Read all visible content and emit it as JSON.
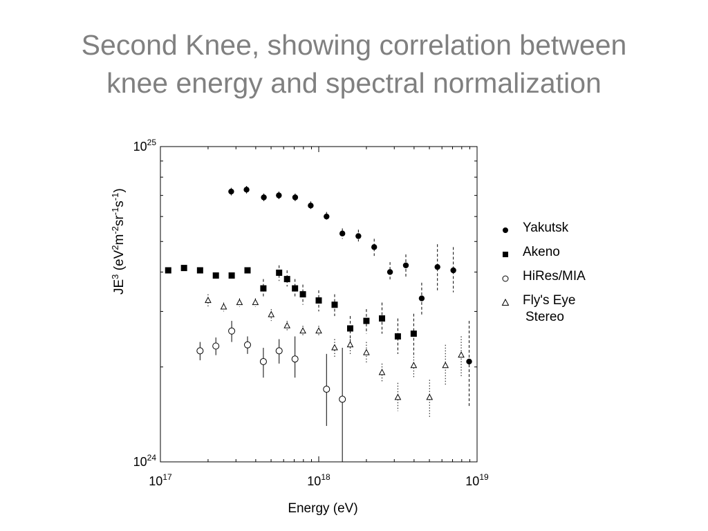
{
  "slide": {
    "title_line1": "Second Knee, showing correlation between",
    "title_line2": "knee energy and spectral normalization"
  },
  "chart_data": {
    "type": "scatter",
    "xlabel": "Energy (eV)",
    "ylabel_main": "JE",
    "ylabel_parts": [
      "JE",
      "3",
      " (eV",
      "2",
      "m",
      "-2",
      "sr",
      "-1",
      "s",
      "-1",
      ")"
    ],
    "x_scale": "log",
    "y_scale": "log",
    "xlim": [
      1e+17,
      1e+19
    ],
    "ylim": [
      1e+24,
      1e+25
    ],
    "x_ticks": [
      {
        "value": 1e+17,
        "base": "10",
        "exp": "17"
      },
      {
        "value": 1e+18,
        "base": "10",
        "exp": "18"
      },
      {
        "value": 1e+19,
        "base": "10",
        "exp": "19"
      }
    ],
    "y_ticks": [
      {
        "value": 1e+24,
        "base": "10",
        "exp": "24"
      },
      {
        "value": 1e+25,
        "base": "10",
        "exp": "25"
      }
    ],
    "legend_placement": "right",
    "series": [
      {
        "name": "Yakutsk",
        "marker": "circle-filled",
        "error_style": "dashed",
        "points": [
          {
            "x": 2.8e+17,
            "y": 7.2e+24,
            "lo": 7e+24,
            "hi": 7.4e+24
          },
          {
            "x": 3.5e+17,
            "y": 7.3e+24,
            "lo": 7.1e+24,
            "hi": 7.5e+24
          },
          {
            "x": 4.5e+17,
            "y": 6.9e+24,
            "lo": 6.7e+24,
            "hi": 7.1e+24
          },
          {
            "x": 5.6e+17,
            "y": 7e+24,
            "lo": 6.8e+24,
            "hi": 7.2e+24
          },
          {
            "x": 7.1e+17,
            "y": 6.9e+24,
            "lo": 6.7e+24,
            "hi": 7.1e+24
          },
          {
            "x": 8.9e+17,
            "y": 6.5e+24,
            "lo": 6.3e+24,
            "hi": 6.7e+24
          },
          {
            "x": 1.12e+18,
            "y": 6e+24,
            "lo": 5.8e+24,
            "hi": 6.2e+24
          },
          {
            "x": 1.41e+18,
            "y": 5.3e+24,
            "lo": 5.1e+24,
            "hi": 5.5e+24
          },
          {
            "x": 1.78e+18,
            "y": 5.2e+24,
            "lo": 5e+24,
            "hi": 5.45e+24
          },
          {
            "x": 2.24e+18,
            "y": 4.8e+24,
            "lo": 4.5e+24,
            "hi": 5.1e+24
          },
          {
            "x": 2.82e+18,
            "y": 4e+24,
            "lo": 3.75e+24,
            "hi": 4.3e+24
          },
          {
            "x": 3.55e+18,
            "y": 4.2e+24,
            "lo": 3.85e+24,
            "hi": 4.55e+24
          },
          {
            "x": 4.47e+18,
            "y": 3.3e+24,
            "lo": 2.9e+24,
            "hi": 3.7e+24
          },
          {
            "x": 5.62e+18,
            "y": 4.15e+24,
            "lo": 3.5e+24,
            "hi": 4.9e+24
          },
          {
            "x": 7.08e+18,
            "y": 4.05e+24,
            "lo": 3.45e+24,
            "hi": 4.8e+24
          },
          {
            "x": 8.91e+18,
            "y": 2.08e+24,
            "lo": 1.5e+24,
            "hi": 2.8e+24
          }
        ]
      },
      {
        "name": "Akeno",
        "marker": "square-filled",
        "error_style": "dashed",
        "points": [
          {
            "x": 1.12e+17,
            "y": 4.05e+24
          },
          {
            "x": 1.41e+17,
            "y": 4.12e+24
          },
          {
            "x": 1.78e+17,
            "y": 4.05e+24
          },
          {
            "x": 2.24e+17,
            "y": 3.9e+24
          },
          {
            "x": 2.82e+17,
            "y": 3.9e+24
          },
          {
            "x": 3.55e+17,
            "y": 4.05e+24
          },
          {
            "x": 4.47e+17,
            "y": 3.55e+24,
            "lo": 3.35e+24,
            "hi": 3.8e+24
          },
          {
            "x": 5.62e+17,
            "y": 3.98e+24,
            "lo": 3.75e+24,
            "hi": 4.2e+24
          },
          {
            "x": 6.31e+17,
            "y": 3.8e+24,
            "lo": 3.6e+24,
            "hi": 4.05e+24
          },
          {
            "x": 7.08e+17,
            "y": 3.55e+24,
            "lo": 3.3e+24,
            "hi": 3.8e+24
          },
          {
            "x": 7.94e+17,
            "y": 3.4e+24,
            "lo": 3.15e+24,
            "hi": 3.65e+24
          },
          {
            "x": 1e+18,
            "y": 3.25e+24,
            "lo": 3e+24,
            "hi": 3.5e+24
          },
          {
            "x": 1.26e+18,
            "y": 3.15e+24,
            "lo": 2.9e+24,
            "hi": 3.4e+24
          },
          {
            "x": 1.58e+18,
            "y": 2.65e+24,
            "lo": 2.4e+24,
            "hi": 2.9e+24
          },
          {
            "x": 2e+18,
            "y": 2.8e+24,
            "lo": 2.55e+24,
            "hi": 3.05e+24
          },
          {
            "x": 2.51e+18,
            "y": 2.85e+24,
            "lo": 2.55e+24,
            "hi": 3.2e+24
          },
          {
            "x": 3.16e+18,
            "y": 2.5e+24,
            "lo": 2.2e+24,
            "hi": 2.85e+24
          },
          {
            "x": 3.98e+18,
            "y": 2.55e+24,
            "lo": 2.2e+24,
            "hi": 2.95e+24
          }
        ]
      },
      {
        "name": "HiRes/MIA",
        "marker": "circle-open",
        "error_style": "solid",
        "points": [
          {
            "x": 1.78e+17,
            "y": 2.25e+24,
            "lo": 2.1e+24,
            "hi": 2.4e+24
          },
          {
            "x": 2.24e+17,
            "y": 2.33e+24,
            "lo": 2.18e+24,
            "hi": 2.48e+24
          },
          {
            "x": 2.82e+17,
            "y": 2.6e+24,
            "lo": 2.4e+24,
            "hi": 2.8e+24
          },
          {
            "x": 3.55e+17,
            "y": 2.35e+24,
            "lo": 2.2e+24,
            "hi": 2.5e+24
          },
          {
            "x": 4.47e+17,
            "y": 2.08e+24,
            "lo": 1.85e+24,
            "hi": 2.3e+24
          },
          {
            "x": 5.62e+17,
            "y": 2.25e+24,
            "lo": 2.05e+24,
            "hi": 2.45e+24
          },
          {
            "x": 7.08e+17,
            "y": 2.12e+24,
            "lo": 1.85e+24,
            "hi": 2.5e+24
          },
          {
            "x": 1.12e+18,
            "y": 1.7e+24,
            "lo": 1.3e+24,
            "hi": 2.2e+24
          },
          {
            "x": 1.41e+18,
            "y": 1.58e+24,
            "lo": 1e+24,
            "hi": 2.3e+24
          }
        ]
      },
      {
        "name": "Fly's Eye",
        "name_line2": "Stereo",
        "marker": "triangle-open",
        "error_style": "dotted",
        "points": [
          {
            "x": 2e+17,
            "y": 3.25e+24,
            "lo": 3.1e+24,
            "hi": 3.4e+24
          },
          {
            "x": 2.51e+17,
            "y": 3.1e+24,
            "lo": 3e+24,
            "hi": 3.2e+24
          },
          {
            "x": 3.16e+17,
            "y": 3.2e+24,
            "lo": 3.1e+24,
            "hi": 3.3e+24
          },
          {
            "x": 3.98e+17,
            "y": 3.2e+24,
            "lo": 3.1e+24,
            "hi": 3.3e+24
          },
          {
            "x": 5.01e+17,
            "y": 2.93e+24,
            "lo": 2.8e+24,
            "hi": 3.05e+24
          },
          {
            "x": 6.31e+17,
            "y": 2.7e+24,
            "lo": 2.6e+24,
            "hi": 2.8e+24
          },
          {
            "x": 7.94e+17,
            "y": 2.6e+24,
            "lo": 2.5e+24,
            "hi": 2.7e+24
          },
          {
            "x": 1e+18,
            "y": 2.6e+24,
            "lo": 2.5e+24,
            "hi": 2.7e+24
          },
          {
            "x": 1.26e+18,
            "y": 2.3e+24,
            "lo": 2.15e+24,
            "hi": 2.45e+24
          },
          {
            "x": 1.58e+18,
            "y": 2.35e+24,
            "lo": 2.2e+24,
            "hi": 2.5e+24
          },
          {
            "x": 2e+18,
            "y": 2.22e+24,
            "lo": 2.05e+24,
            "hi": 2.4e+24
          },
          {
            "x": 2.51e+18,
            "y": 1.92e+24,
            "lo": 1.78e+24,
            "hi": 2.05e+24
          },
          {
            "x": 3.16e+18,
            "y": 1.6e+24,
            "lo": 1.45e+24,
            "hi": 1.78e+24
          },
          {
            "x": 3.98e+18,
            "y": 2.02e+24,
            "lo": 1.85e+24,
            "hi": 2.2e+24
          },
          {
            "x": 5.01e+18,
            "y": 1.6e+24,
            "lo": 1.38e+24,
            "hi": 1.82e+24
          },
          {
            "x": 6.31e+18,
            "y": 2.02e+24,
            "lo": 1.75e+24,
            "hi": 2.35e+24
          },
          {
            "x": 7.94e+18,
            "y": 2.18e+24,
            "lo": 1.85e+24,
            "hi": 2.5e+24
          }
        ]
      }
    ]
  }
}
